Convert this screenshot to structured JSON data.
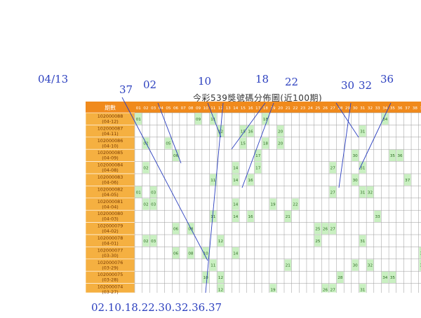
{
  "annotations": {
    "date": "04/13",
    "n37": "37",
    "n02": "02",
    "n10": "10",
    "n18": "18",
    "n22": "22",
    "n30": "30",
    "n32": "32",
    "n36": "36",
    "bottom": "02.10.18.22.30.32.36.37"
  },
  "title": "今彩539獎號碼分佈圖(近100期)",
  "header": {
    "period_label": "期數",
    "numbers": [
      "01",
      "02",
      "03",
      "04",
      "05",
      "06",
      "07",
      "08",
      "09",
      "10",
      "11",
      "12",
      "13",
      "14",
      "15",
      "16",
      "17",
      "18",
      "19",
      "20",
      "21",
      "22",
      "23",
      "24",
      "25",
      "26",
      "27",
      "28",
      "29",
      "30",
      "31",
      "32",
      "33",
      "34",
      "35",
      "36",
      "37",
      "38",
      "39"
    ]
  },
  "rows": [
    {
      "period": "102000088",
      "date": "(04-12)",
      "hits": [
        "01",
        "09",
        "11",
        "18",
        "34"
      ]
    },
    {
      "period": "102000087",
      "date": "(04-11)",
      "hits": [
        "12",
        "15",
        "16",
        "20",
        "31"
      ]
    },
    {
      "period": "102000086",
      "date": "(04-10)",
      "hits": [
        "02",
        "05",
        "15",
        "18",
        "20"
      ]
    },
    {
      "period": "102000085",
      "date": "(04-09)",
      "hits": [
        "06",
        "17",
        "30",
        "35",
        "36"
      ]
    },
    {
      "period": "102000084",
      "date": "(04-08)",
      "hits": [
        "02",
        "14",
        "17",
        "27",
        "31"
      ]
    },
    {
      "period": "102000083",
      "date": "(04-06)",
      "hits": [
        "11",
        "14",
        "16",
        "30",
        "37"
      ]
    },
    {
      "period": "102000082",
      "date": "(04-05)",
      "hits": [
        "01",
        "03",
        "27",
        "31",
        "32"
      ]
    },
    {
      "period": "102000081",
      "date": "(04-04)",
      "hits": [
        "02",
        "03",
        "14",
        "19",
        "22"
      ]
    },
    {
      "period": "102000080",
      "date": "(04-03)",
      "hits": [
        "11",
        "14",
        "16",
        "21",
        "33"
      ]
    },
    {
      "period": "102000079",
      "date": "(04-02)",
      "hits": [
        "06",
        "08",
        "25",
        "26",
        "27"
      ]
    },
    {
      "period": "102000078",
      "date": "(04-01)",
      "hits": [
        "02",
        "03",
        "12",
        "25",
        "31"
      ]
    },
    {
      "period": "102000077",
      "date": "(03-30)",
      "hits": [
        "06",
        "08",
        "10",
        "14",
        "39"
      ]
    },
    {
      "period": "102000076",
      "date": "(03-29)",
      "hits": [
        "11",
        "21",
        "30",
        "32",
        "39"
      ]
    },
    {
      "period": "102000075",
      "date": "(03-28)",
      "hits": [
        "10",
        "12",
        "28",
        "34",
        "35"
      ]
    },
    {
      "period": "102000074",
      "date": "(03-27)",
      "hits": [
        "12",
        "19",
        "26",
        "27",
        "31"
      ]
    }
  ],
  "colors": {
    "header_bg": "#f08a1c",
    "header_text": "#ffffff",
    "period_bg": "#f5b041",
    "period_text": "#7a3b00",
    "hit_bg": "#c9f0c1",
    "hit_text": "#2e6b24",
    "grid_line": "#9a9a9a",
    "annotation": "#2b3fbf"
  }
}
